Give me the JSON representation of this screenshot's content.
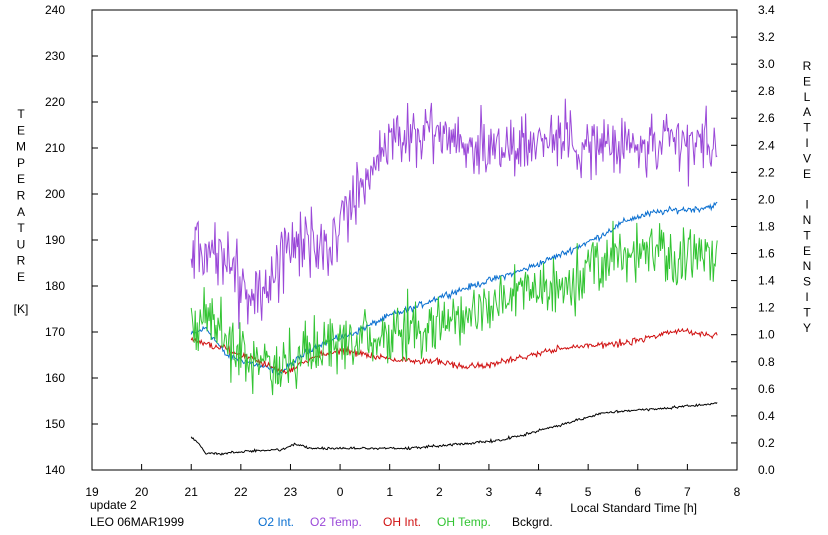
{
  "chart_data": {
    "type": "line",
    "x_axis": {
      "label": "Local Standard Time [h]",
      "range": [
        19,
        32
      ],
      "ticks": [
        19,
        20,
        21,
        22,
        23,
        24,
        25,
        26,
        27,
        28,
        29,
        30,
        31,
        32
      ],
      "tick_labels": [
        "19",
        "20",
        "21",
        "22",
        "23",
        "0",
        "1",
        "2",
        "3",
        "4",
        "5",
        "6",
        "7",
        "8"
      ]
    },
    "y_left": {
      "label": "TEMPERATURE",
      "unit": "[K]",
      "range": [
        140,
        240
      ],
      "ticks": [
        140,
        150,
        160,
        170,
        180,
        190,
        200,
        210,
        220,
        230,
        240
      ]
    },
    "y_right": {
      "label": "RELATIVE INTENSITY",
      "range": [
        0.0,
        3.4
      ],
      "ticks": [
        "0.0",
        "0.2",
        "0.4",
        "0.6",
        "0.8",
        "1.0",
        "1.2",
        "1.4",
        "1.6",
        "1.8",
        "2.0",
        "2.2",
        "2.4",
        "2.6",
        "2.8",
        "3.0",
        "3.2",
        "3.4"
      ]
    },
    "grid": false,
    "annotations": {
      "update": "update 2",
      "station": "LEO 06MAR1999"
    },
    "legend": [
      "O2 Int.",
      "O2 Temp.",
      "OH Int.",
      "OH Temp.",
      "Bckgrd."
    ],
    "series": [
      {
        "name": "O2 Int.",
        "axis": "right",
        "color": "#0a6fd0",
        "noise": 0.015,
        "points": [
          [
            21.0,
            1.0
          ],
          [
            21.3,
            1.05
          ],
          [
            21.7,
            0.85
          ],
          [
            22.3,
            0.78
          ],
          [
            22.8,
            0.72
          ],
          [
            23.5,
            0.92
          ],
          [
            24.2,
            1.0
          ],
          [
            25.0,
            1.14
          ],
          [
            25.5,
            1.2
          ],
          [
            26.0,
            1.28
          ],
          [
            26.5,
            1.34
          ],
          [
            27.0,
            1.4
          ],
          [
            27.7,
            1.48
          ],
          [
            28.5,
            1.6
          ],
          [
            29.2,
            1.72
          ],
          [
            29.8,
            1.85
          ],
          [
            30.3,
            1.9
          ],
          [
            30.7,
            1.92
          ],
          [
            31.2,
            1.93
          ],
          [
            31.6,
            1.96
          ]
        ]
      },
      {
        "name": "O2 Temp.",
        "axis": "left",
        "color": "#9a48d8",
        "noise": 4.5,
        "points": [
          [
            21.0,
            188
          ],
          [
            21.5,
            188
          ],
          [
            22.0,
            180
          ],
          [
            22.5,
            178
          ],
          [
            23.0,
            190
          ],
          [
            23.5,
            188
          ],
          [
            24.0,
            192
          ],
          [
            24.3,
            200
          ],
          [
            24.7,
            208
          ],
          [
            25.2,
            212
          ],
          [
            25.7,
            214
          ],
          [
            26.2,
            212
          ],
          [
            26.7,
            210
          ],
          [
            27.2,
            211
          ],
          [
            27.7,
            211
          ],
          [
            28.2,
            212
          ],
          [
            28.7,
            212
          ],
          [
            29.2,
            210
          ],
          [
            29.7,
            210
          ],
          [
            30.2,
            210
          ],
          [
            30.7,
            210
          ],
          [
            31.2,
            211
          ],
          [
            31.6,
            210
          ]
        ]
      },
      {
        "name": "OH Int.",
        "axis": "right",
        "color": "#d01010",
        "noise": 0.015,
        "points": [
          [
            21.0,
            0.96
          ],
          [
            21.5,
            0.92
          ],
          [
            22.0,
            0.85
          ],
          [
            22.5,
            0.78
          ],
          [
            22.9,
            0.72
          ],
          [
            23.5,
            0.84
          ],
          [
            24.0,
            0.88
          ],
          [
            24.5,
            0.86
          ],
          [
            25.0,
            0.82
          ],
          [
            25.5,
            0.8
          ],
          [
            26.0,
            0.8
          ],
          [
            26.5,
            0.76
          ],
          [
            27.0,
            0.78
          ],
          [
            27.5,
            0.82
          ],
          [
            28.0,
            0.86
          ],
          [
            28.5,
            0.9
          ],
          [
            29.0,
            0.92
          ],
          [
            29.5,
            0.93
          ],
          [
            30.0,
            0.96
          ],
          [
            30.5,
            1.0
          ],
          [
            30.9,
            1.03
          ],
          [
            31.3,
            1.0
          ],
          [
            31.6,
            1.0
          ]
        ]
      },
      {
        "name": "OH Temp.",
        "axis": "left",
        "color": "#33c433",
        "noise": 4.0,
        "points": [
          [
            21.0,
            172
          ],
          [
            21.3,
            174
          ],
          [
            21.7,
            168
          ],
          [
            22.2,
            163
          ],
          [
            22.8,
            162
          ],
          [
            23.2,
            165
          ],
          [
            23.8,
            168
          ],
          [
            24.5,
            168
          ],
          [
            25.2,
            170
          ],
          [
            25.8,
            171
          ],
          [
            26.5,
            173
          ],
          [
            27.0,
            176
          ],
          [
            27.5,
            178
          ],
          [
            28.0,
            179
          ],
          [
            28.5,
            180
          ],
          [
            29.0,
            183
          ],
          [
            29.5,
            186
          ],
          [
            30.0,
            188
          ],
          [
            30.5,
            188
          ],
          [
            31.0,
            186
          ],
          [
            31.6,
            187
          ]
        ]
      },
      {
        "name": "Bckgrd.",
        "axis": "right",
        "color": "#000000",
        "noise": 0.006,
        "points": [
          [
            21.0,
            0.24
          ],
          [
            21.15,
            0.2
          ],
          [
            21.3,
            0.12
          ],
          [
            21.6,
            0.12
          ],
          [
            22.2,
            0.14
          ],
          [
            22.8,
            0.15
          ],
          [
            23.1,
            0.19
          ],
          [
            23.4,
            0.16
          ],
          [
            24.0,
            0.16
          ],
          [
            24.6,
            0.16
          ],
          [
            25.4,
            0.16
          ],
          [
            26.0,
            0.18
          ],
          [
            26.7,
            0.2
          ],
          [
            27.2,
            0.22
          ],
          [
            27.7,
            0.26
          ],
          [
            28.3,
            0.32
          ],
          [
            28.8,
            0.37
          ],
          [
            29.3,
            0.42
          ],
          [
            29.8,
            0.44
          ],
          [
            30.4,
            0.45
          ],
          [
            30.9,
            0.47
          ],
          [
            31.3,
            0.48
          ],
          [
            31.6,
            0.5
          ]
        ]
      }
    ]
  }
}
